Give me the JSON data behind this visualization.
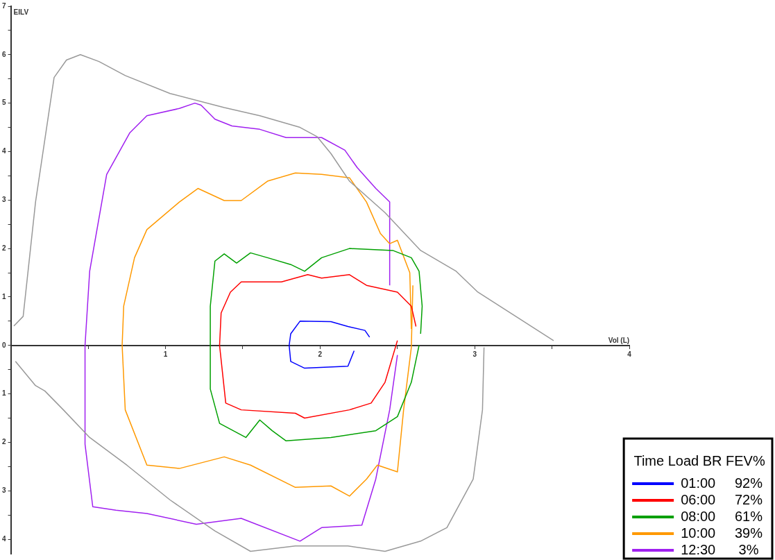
{
  "chart_data": {
    "type": "line",
    "xlabel": "Vol (L)",
    "ylabel": "EILV",
    "legend_title": "Time Load BR FEV%",
    "xlim": [
      0,
      4
    ],
    "ylim": [
      -4.3,
      7
    ],
    "xticks": [
      {
        "value": 0.5,
        "label": null
      },
      1,
      {
        "value": 1.5,
        "label": null
      },
      2,
      {
        "value": 2.5,
        "label": null
      },
      3,
      {
        "value": 3.5,
        "label": null
      },
      4
    ],
    "yticks": [
      {
        "value": -4,
        "label": "4"
      },
      {
        "value": -3.5,
        "label": null
      },
      {
        "value": -3,
        "label": "3"
      },
      {
        "value": -2.5,
        "label": null
      },
      {
        "value": -2,
        "label": "2"
      },
      {
        "value": -1.5,
        "label": null
      },
      {
        "value": -1,
        "label": "1"
      },
      {
        "value": -0.5,
        "label": null
      },
      0,
      {
        "value": 0.5,
        "label": null
      },
      1,
      {
        "value": 1.5,
        "label": null
      },
      2,
      {
        "value": 2.5,
        "label": null
      },
      3,
      {
        "value": 3.5,
        "label": null
      },
      4,
      {
        "value": 4.5,
        "label": null
      },
      5,
      {
        "value": 5.5,
        "label": null
      },
      6,
      {
        "value": 6.5,
        "label": null
      },
      7
    ],
    "grid": false,
    "legend": "bottom right",
    "marker": "none",
    "line_style": "solid",
    "series": [
      {
        "color": "#999999",
        "x": [
          0.02,
          0.08,
          0.16,
          0.28,
          0.36,
          0.45,
          0.57,
          0.74,
          1.03,
          1.38,
          1.61,
          1.87,
          1.98,
          2.07,
          2.19,
          2.42,
          2.65,
          2.88,
          3.02,
          3.23,
          3.51
        ],
        "values": [
          0.4,
          0.6,
          2.96,
          5.53,
          5.89,
          6.0,
          5.86,
          5.57,
          5.2,
          4.91,
          4.74,
          4.5,
          4.31,
          3.96,
          3.39,
          2.74,
          1.96,
          1.53,
          1.1,
          0.67,
          0.1
        ]
      },
      {
        "color": "#999999",
        "x": [
          0.03,
          0.16,
          0.22,
          0.34,
          0.51,
          0.75,
          1.03,
          1.32,
          1.55,
          1.84,
          2.18,
          2.42,
          2.65,
          2.82,
          2.99,
          3.05,
          3.06
        ],
        "values": [
          -0.33,
          -0.83,
          -0.94,
          -1.33,
          -1.9,
          -2.47,
          -3.19,
          -3.83,
          -4.25,
          -4.14,
          -4.14,
          -4.25,
          -4.04,
          -3.76,
          -2.76,
          -1.33,
          -0.04
        ]
      },
      {
        "name": "01:00     92%",
        "color": "#0000ff",
        "x": [
          2.32,
          2.29,
          2.18,
          2.07,
          1.87,
          1.81,
          1.8,
          1.81,
          1.9,
          2.18,
          2.22
        ],
        "values": [
          0.17,
          0.31,
          0.39,
          0.49,
          0.5,
          0.24,
          0,
          -0.33,
          -0.47,
          -0.43,
          -0.11
        ]
      },
      {
        "name": "06:00     72%",
        "color": "#ff0000",
        "x": [
          2.62,
          2.59,
          2.5,
          2.3,
          2.19,
          2.01,
          1.92,
          1.75,
          1.49,
          1.42,
          1.36,
          1.35,
          1.39,
          1.49,
          1.84,
          1.9,
          2.19,
          2.33,
          2.42,
          2.5
        ],
        "values": [
          0.39,
          0.81,
          1.1,
          1.24,
          1.46,
          1.39,
          1.46,
          1.31,
          1.31,
          1.1,
          0.67,
          0,
          -1.19,
          -1.33,
          -1.4,
          -1.5,
          -1.33,
          -1.19,
          -0.76,
          0.1
        ]
      },
      {
        "name": "08:00     61%",
        "color": "#00a000",
        "x": [
          2.65,
          2.66,
          2.64,
          2.59,
          2.47,
          2.19,
          2.01,
          1.9,
          1.81,
          1.66,
          1.55,
          1.46,
          1.38,
          1.32,
          1.29,
          1.29,
          1.35,
          1.52,
          1.61,
          1.69,
          1.78,
          2.07,
          2.36,
          2.5,
          2.59,
          2.64
        ],
        "values": [
          0.24,
          0.81,
          1.53,
          1.81,
          1.96,
          2.0,
          1.81,
          1.53,
          1.67,
          1.81,
          1.91,
          1.7,
          1.89,
          1.74,
          0.81,
          -0.9,
          -1.61,
          -1.9,
          -1.54,
          -1.76,
          -1.97,
          -1.9,
          -1.76,
          -1.47,
          -0.76,
          0
        ]
      },
      {
        "name": "10:00     39%",
        "color": "#ff9900",
        "x": [
          2.59,
          2.58,
          2.5,
          2.45,
          2.39,
          2.3,
          2.19,
          2.01,
          1.84,
          1.66,
          1.49,
          1.38,
          1.21,
          1.09,
          0.88,
          0.8,
          0.73,
          0.72,
          0.74,
          0.88,
          1.09,
          1.38,
          1.55,
          1.84,
          2.07,
          2.19,
          2.3,
          2.37,
          2.5,
          2.54,
          2.59,
          2.6
        ],
        "values": [
          0.34,
          1.5,
          2.17,
          2.1,
          2.31,
          2.96,
          3.46,
          3.53,
          3.56,
          3.39,
          2.99,
          2.99,
          3.24,
          2.96,
          2.39,
          1.81,
          0.81,
          0,
          -1.33,
          -2.47,
          -2.54,
          -2.3,
          -2.47,
          -2.93,
          -2.9,
          -3.11,
          -2.76,
          -2.47,
          -2.61,
          -1.33,
          -0.04,
          1.24
        ]
      },
      {
        "name": "12:30      3%",
        "color": "#a020f0",
        "x": [
          2.45,
          2.45,
          2.36,
          2.24,
          2.16,
          2.01,
          1.78,
          1.61,
          1.43,
          1.32,
          1.23,
          1.19,
          1.09,
          0.88,
          0.77,
          0.62,
          0.51,
          0.48,
          0.48,
          0.53,
          0.68,
          0.88,
          1.2,
          1.49,
          1.87,
          2.01,
          2.27,
          2.36,
          2.45,
          2.5
        ],
        "values": [
          1.24,
          2.96,
          3.24,
          3.67,
          4.03,
          4.29,
          4.29,
          4.46,
          4.53,
          4.67,
          4.96,
          5.0,
          4.89,
          4.74,
          4.39,
          3.53,
          1.53,
          0,
          -2.04,
          -3.33,
          -3.4,
          -3.47,
          -3.69,
          -3.57,
          -4.04,
          -3.76,
          -3.71,
          -2.76,
          -1.33,
          -0.2
        ]
      }
    ]
  }
}
